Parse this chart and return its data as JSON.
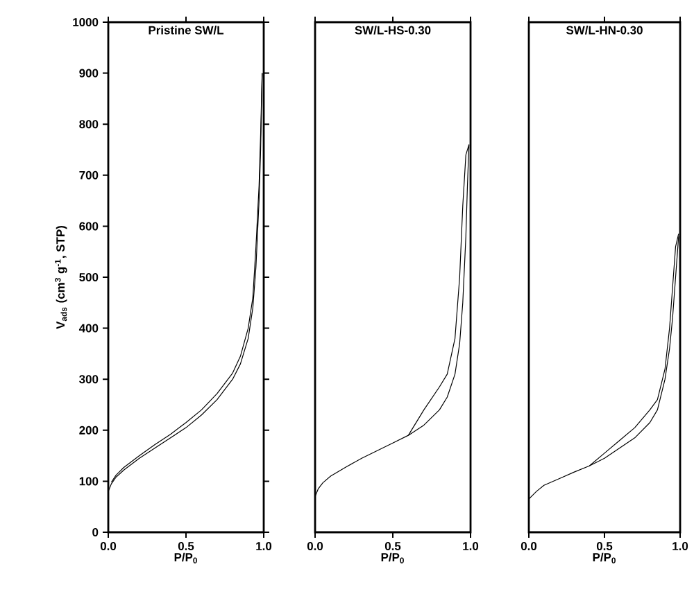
{
  "chart_data": [
    {
      "type": "line",
      "title": "Pristine SW/L",
      "xlabel": "P/P$_{0}$",
      "ylabel": "V$_{ads}$ (cm$^{3}$ g$^{-1}$, STP)",
      "xlim": [
        0,
        1
      ],
      "ylim": [
        0,
        1000
      ],
      "xticks": [
        {
          "value": 0,
          "label": "0.0"
        },
        {
          "value": 0.5,
          "label": "0.5"
        },
        {
          "value": 1,
          "label": "1.0"
        }
      ],
      "yticks": [
        0,
        100,
        200,
        300,
        400,
        500,
        600,
        700,
        800,
        900,
        1000
      ],
      "series": [
        {
          "color": "#000000",
          "x": [
            0,
            0.02,
            0.05,
            0.1,
            0.2,
            0.3,
            0.4,
            0.5,
            0.6,
            0.7,
            0.8,
            0.85,
            0.9,
            0.93,
            0.95,
            0.97,
            0.98,
            0.99
          ],
          "values": [
            80,
            95,
            108,
            122,
            145,
            165,
            185,
            205,
            230,
            260,
            300,
            330,
            380,
            440,
            520,
            650,
            750,
            900
          ]
        },
        {
          "color": "#000000",
          "x": [
            0.99,
            0.98,
            0.97,
            0.95,
            0.93,
            0.9,
            0.85,
            0.8,
            0.7,
            0.6,
            0.5,
            0.4,
            0.3,
            0.2,
            0.1,
            0.05,
            0.02
          ],
          "values": [
            900,
            780,
            680,
            560,
            460,
            400,
            345,
            312,
            272,
            240,
            215,
            192,
            172,
            150,
            127,
            112,
            98
          ]
        }
      ]
    },
    {
      "type": "line",
      "title": "SW/L-HS-0.30",
      "xlabel": "P/P$_{0}$",
      "xlim": [
        0,
        1
      ],
      "ylim": [
        0,
        1000
      ],
      "tick_labels": "x",
      "xticks": [
        {
          "value": 0,
          "label": "0.0"
        },
        {
          "value": 0.5,
          "label": "0.5"
        },
        {
          "value": 1,
          "label": "1.0"
        }
      ],
      "series": [
        {
          "color": "#000000",
          "x": [
            0,
            0.02,
            0.05,
            0.1,
            0.2,
            0.3,
            0.4,
            0.5,
            0.6,
            0.7,
            0.8,
            0.85,
            0.9,
            0.93,
            0.95,
            0.97,
            0.98,
            0.99
          ],
          "values": [
            70,
            85,
            97,
            110,
            128,
            145,
            160,
            175,
            190,
            210,
            240,
            265,
            310,
            370,
            450,
            580,
            680,
            760
          ]
        },
        {
          "color": "#000000",
          "x": [
            0.99,
            0.97,
            0.95,
            0.93,
            0.9,
            0.85,
            0.8,
            0.7,
            0.6
          ],
          "values": [
            760,
            740,
            640,
            500,
            380,
            310,
            285,
            240,
            190
          ]
        }
      ]
    },
    {
      "type": "line",
      "title": "SW/L-HN-0.30",
      "xlabel": "P/P$_{0}$",
      "xlim": [
        0,
        1
      ],
      "ylim": [
        0,
        1000
      ],
      "tick_labels": "x",
      "xticks": [
        {
          "value": 0,
          "label": "0.0"
        },
        {
          "value": 0.5,
          "label": "0.5"
        },
        {
          "value": 1,
          "label": "1.0"
        }
      ],
      "series": [
        {
          "color": "#000000",
          "x": [
            0,
            0.05,
            0.1,
            0.2,
            0.3,
            0.4,
            0.5,
            0.6,
            0.7,
            0.8,
            0.85,
            0.9,
            0.93,
            0.95,
            0.97,
            0.99
          ],
          "values": [
            65,
            80,
            92,
            105,
            118,
            130,
            145,
            165,
            185,
            215,
            240,
            300,
            360,
            420,
            500,
            580
          ]
        },
        {
          "color": "#000000",
          "x": [
            0.99,
            0.97,
            0.95,
            0.93,
            0.9,
            0.85,
            0.8,
            0.7,
            0.6,
            0.5,
            0.4
          ],
          "values": [
            585,
            560,
            480,
            400,
            320,
            260,
            240,
            205,
            180,
            155,
            130
          ]
        }
      ]
    }
  ]
}
